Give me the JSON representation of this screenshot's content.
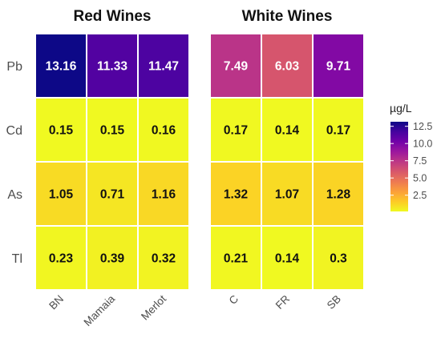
{
  "chart_data": {
    "type": "heatmap",
    "rows": [
      "Pb",
      "Cd",
      "As",
      "Tl"
    ],
    "panels": [
      {
        "title": "Red Wines",
        "columns": [
          "BN",
          "Mamaia",
          "Merlot"
        ],
        "values": [
          [
            13.16,
            11.33,
            11.47
          ],
          [
            0.15,
            0.15,
            0.16
          ],
          [
            1.05,
            0.71,
            1.16
          ],
          [
            0.23,
            0.39,
            0.32
          ]
        ],
        "labels": [
          [
            "13.16",
            "11.33",
            "11.47"
          ],
          [
            "0.15",
            "0.15",
            "0.16"
          ],
          [
            "1.05",
            "0.71",
            "1.16"
          ],
          [
            "0.23",
            "0.39",
            "0.32"
          ]
        ]
      },
      {
        "title": "White Wines",
        "columns": [
          "C",
          "FR",
          "SB"
        ],
        "values": [
          [
            7.49,
            6.03,
            9.71
          ],
          [
            0.17,
            0.14,
            0.17
          ],
          [
            1.32,
            1.07,
            1.28
          ],
          [
            0.21,
            0.14,
            0.3
          ]
        ],
        "labels": [
          [
            "7.49",
            "6.03",
            "9.71"
          ],
          [
            "0.17",
            "0.14",
            "0.17"
          ],
          [
            "1.32",
            "1.07",
            "1.28"
          ],
          [
            "0.21",
            "0.14",
            "0.3"
          ]
        ]
      }
    ],
    "legend": {
      "title": "µg/L",
      "ticks": [
        12.5,
        10.0,
        7.5,
        5.0,
        2.5
      ],
      "tick_labels": [
        "12.5",
        "10.0",
        "7.5",
        "5.0",
        "2.5"
      ],
      "range": [
        0.14,
        13.16
      ],
      "placement": "right"
    },
    "colorscale": {
      "name": "plasma",
      "direction": "reversed",
      "stops": [
        "#f0f921",
        "#fdca26",
        "#fb9f3a",
        "#ed7953",
        "#d8576b",
        "#bd3786",
        "#9c179e",
        "#7201a8",
        "#46039f",
        "#0d0887"
      ]
    },
    "grid": false
  }
}
